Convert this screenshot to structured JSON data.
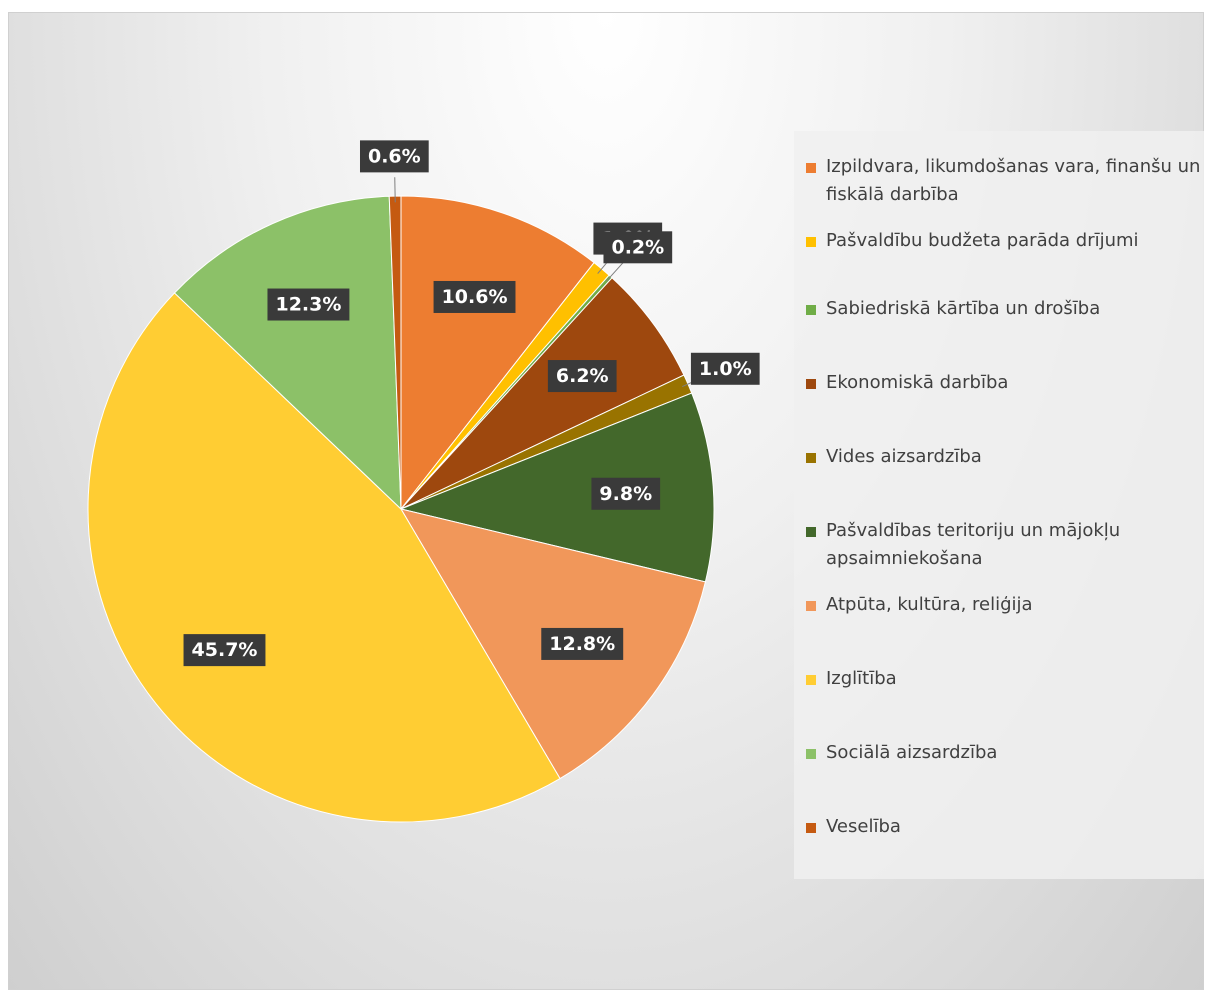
{
  "chart_data": {
    "type": "pie",
    "categories": [
      "Izpildvara, likumdošanas vara, finanšu un fiskālā darbība",
      "Pašvaldību budžeta parāda drījumi",
      "Sabiedriskā kārtība un drošība",
      "Ekonomiskā darbība",
      "Vides aizsardzība",
      "Pašvaldības teritoriju un mājokļu apsaimniekošana",
      "Atpūta, kultūra, reliģija",
      "Izglītība",
      "Sociālā aizsardzība",
      "Veselība"
    ],
    "values": [
      10.6,
      1.0,
      0.2,
      6.2,
      1.0,
      9.8,
      12.8,
      45.7,
      12.3,
      0.6
    ],
    "value_labels": [
      "10.6%",
      "1.0%",
      "0.2%",
      "6.2%",
      "1.0%",
      "9.8%",
      "12.8%",
      "45.7%",
      "12.3%",
      "0.6%"
    ],
    "colors": [
      "#ED7D31",
      "#FFC000",
      "#70AD47",
      "#9E480E",
      "#997300",
      "#43682B",
      "#F1975A",
      "#FFCD33",
      "#8CC168",
      "#C55A11"
    ],
    "legend": "right"
  }
}
